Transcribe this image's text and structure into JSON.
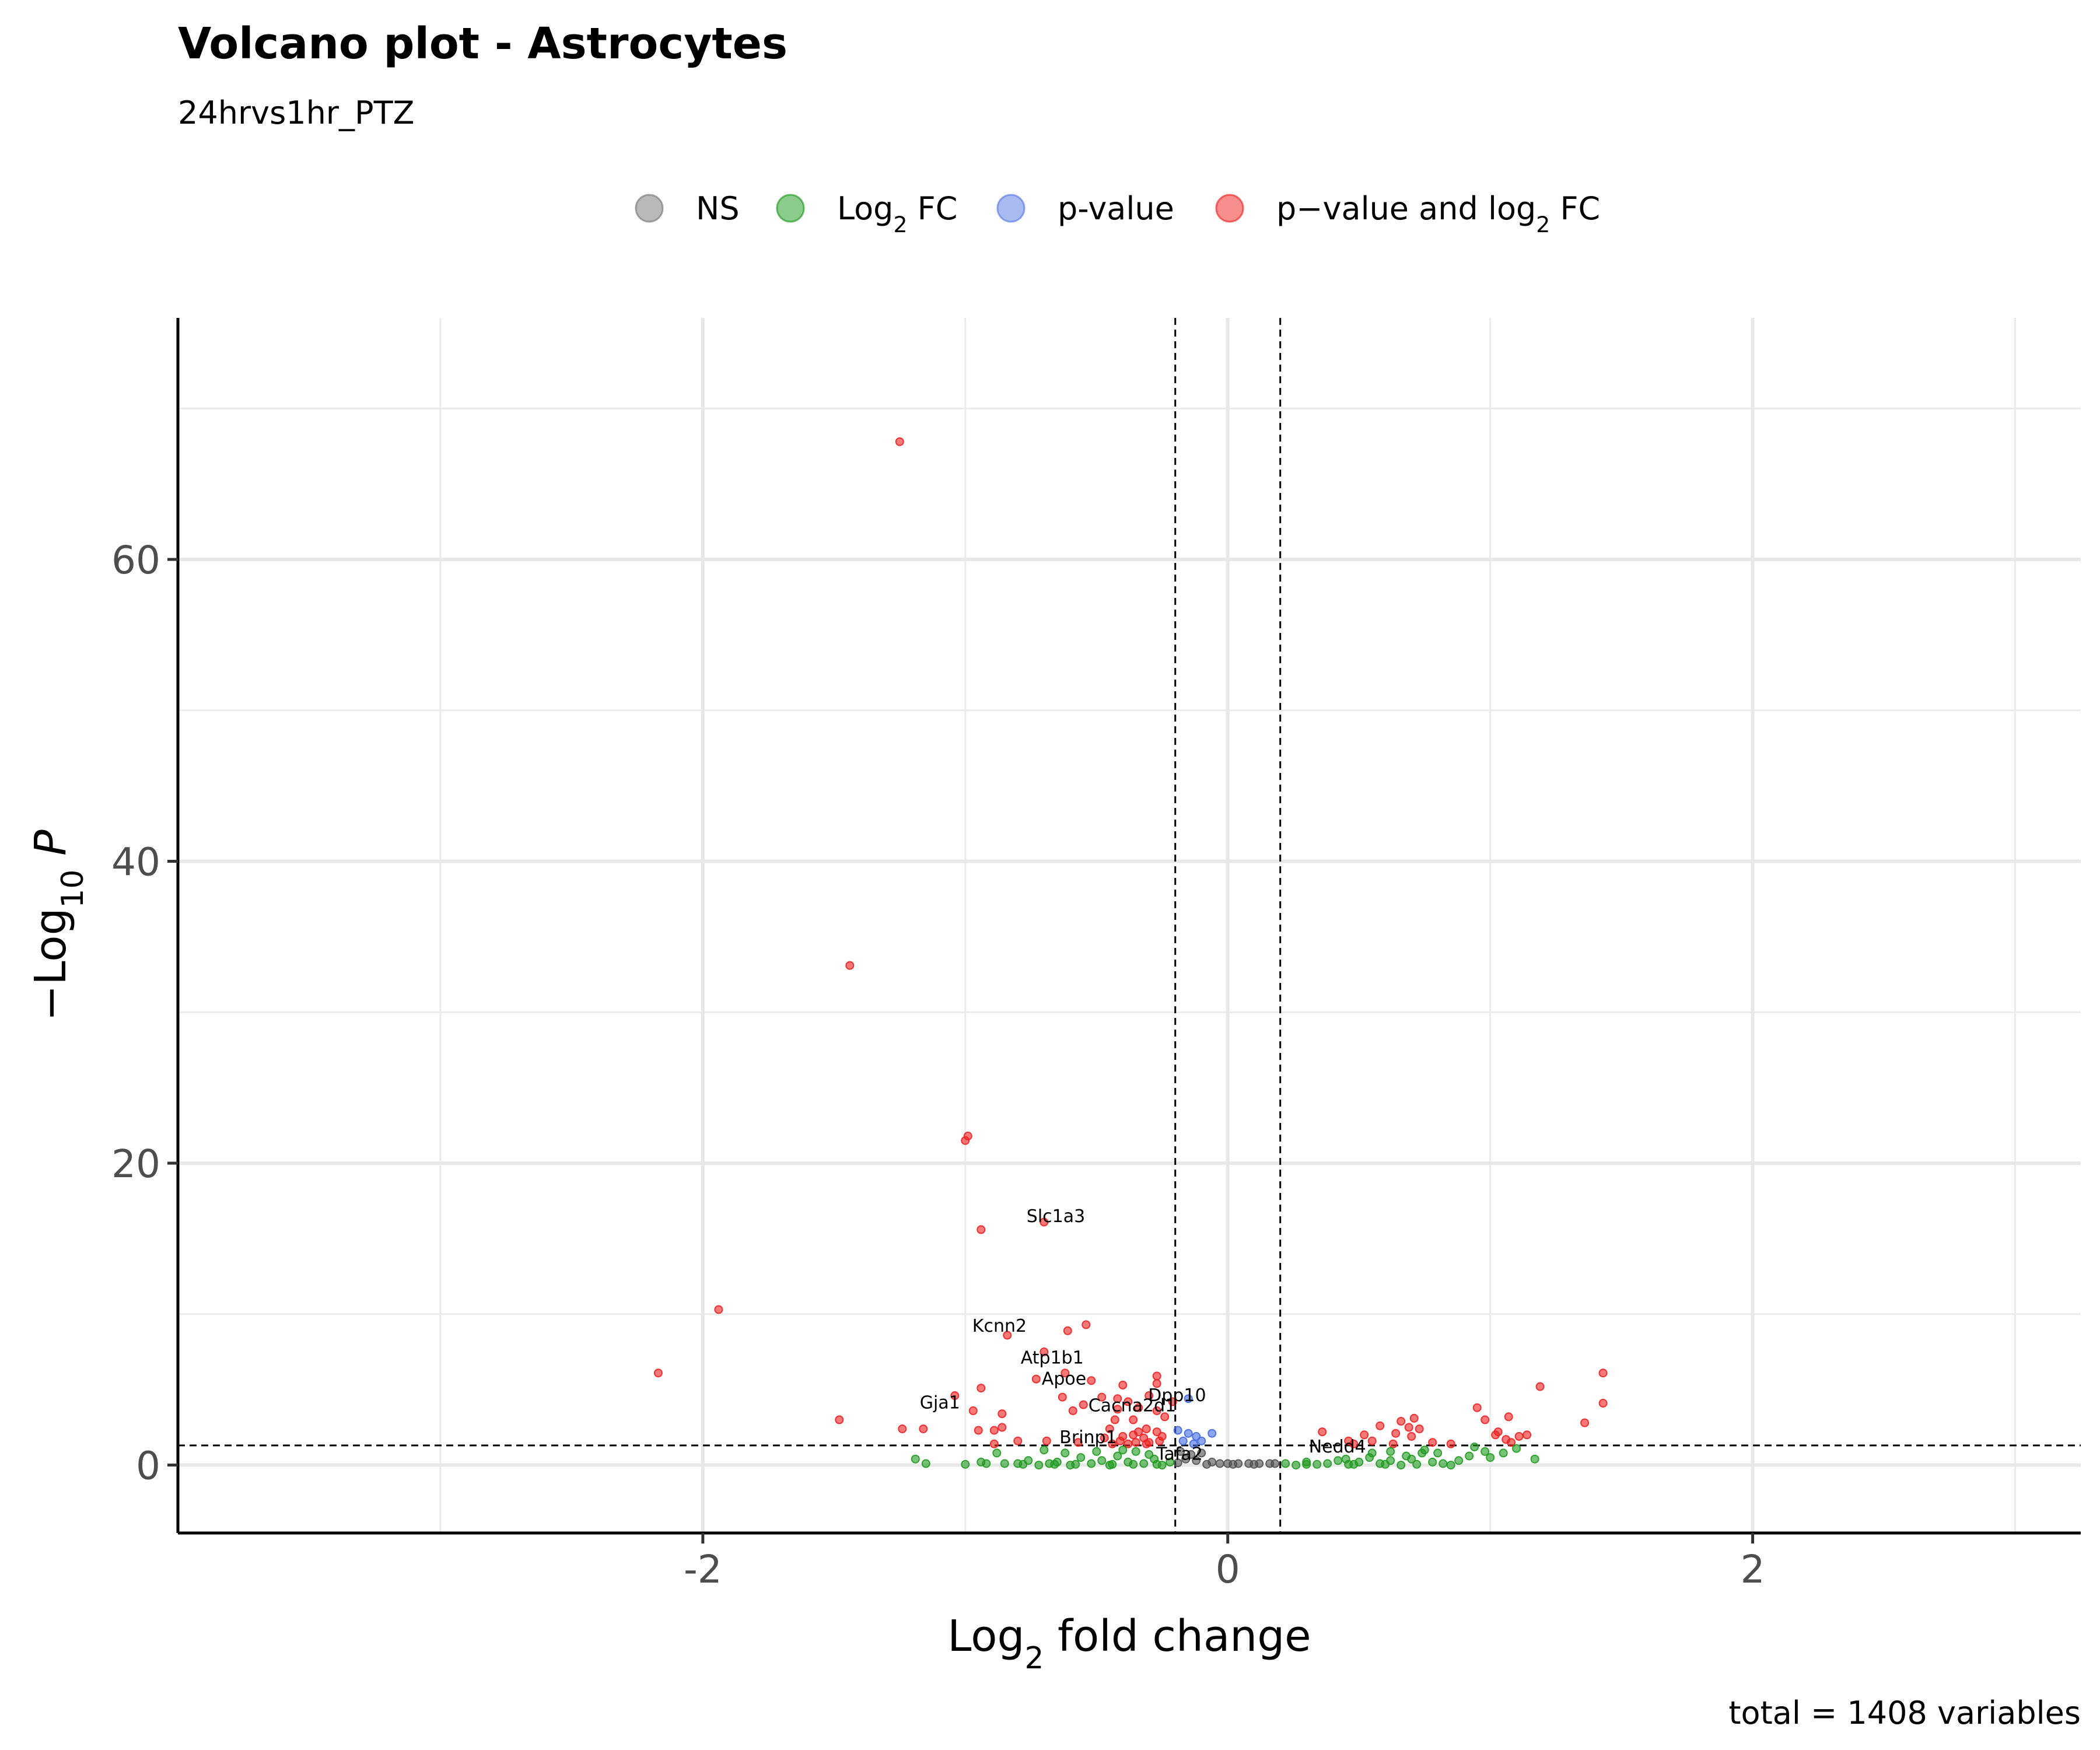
{
  "chart_data": {
    "type": "scatter",
    "title": "Volcano plot - Astrocytes",
    "subtitle": "24hrvs1hr_PTZ",
    "xlabel": {
      "pre": "Log",
      "sub": "2",
      "post": " fold change"
    },
    "ylabel": {
      "pre": "−Log",
      "sub": "10",
      "post": " P"
    },
    "xlim": [
      -4,
      3.25
    ],
    "ylim": [
      -4.5,
      76
    ],
    "x_ticks": [
      -2,
      0,
      2
    ],
    "x_tick_labels": [
      "-2",
      "0",
      "2"
    ],
    "y_ticks": [
      0,
      20,
      40,
      60
    ],
    "y_tick_labels": [
      "0",
      "20",
      "40",
      "60"
    ],
    "x_minor_grid": [
      -3,
      -1,
      1,
      3
    ],
    "y_minor_grid": [
      10,
      30,
      50,
      70
    ],
    "grid": true,
    "thresholds": {
      "log2fc": [
        -0.2,
        0.2
      ],
      "neg_log10_p": 1.3
    },
    "caption": "total = 1408 variables",
    "legend": {
      "position": "top",
      "entries": [
        {
          "key": "NS",
          "text": "NS",
          "color": "#808080"
        },
        {
          "key": "FC",
          "text": "Log",
          "sub": "2",
          "post": " FC",
          "color": "#2ca02c"
        },
        {
          "key": "P",
          "text": "p-value",
          "color": "#6382e6"
        },
        {
          "key": "PFC",
          "text": "p−value and log",
          "sub": "2",
          "post": " FC",
          "color": "#f0302d"
        }
      ]
    },
    "colors": {
      "NS": "#505050",
      "FC": "#1f9a1f",
      "P": "#4169e1",
      "PFC": "#ee2020"
    },
    "series": [
      {
        "category": "p-value and log2 FC",
        "points": [
          [
            -1.25,
            67.8
          ],
          [
            -1.44,
            33.1
          ],
          [
            -0.99,
            21.8
          ],
          [
            -1.0,
            21.5
          ],
          [
            -0.94,
            15.6
          ],
          [
            -0.7,
            16.1
          ],
          [
            -1.94,
            10.3
          ],
          [
            -2.17,
            6.1
          ],
          [
            -1.48,
            3.0
          ],
          [
            -0.54,
            9.3
          ],
          [
            -0.61,
            8.9
          ],
          [
            -0.84,
            8.6
          ],
          [
            -0.7,
            7.5
          ],
          [
            -0.62,
            6.1
          ],
          [
            -0.73,
            5.7
          ],
          [
            -0.52,
            5.6
          ],
          [
            -0.27,
            5.9
          ],
          [
            -0.27,
            5.4
          ],
          [
            -0.4,
            5.3
          ],
          [
            -0.94,
            5.1
          ],
          [
            -1.04,
            4.6
          ],
          [
            -0.63,
            4.5
          ],
          [
            -0.48,
            4.5
          ],
          [
            -0.42,
            4.4
          ],
          [
            -0.3,
            4.6
          ],
          [
            -0.21,
            4.2
          ],
          [
            -0.55,
            4.0
          ],
          [
            -0.38,
            4.2
          ],
          [
            -0.34,
            3.8
          ],
          [
            -0.59,
            3.6
          ],
          [
            -0.42,
            3.7
          ],
          [
            -0.27,
            3.6
          ],
          [
            -0.97,
            3.6
          ],
          [
            -0.86,
            3.4
          ],
          [
            -0.24,
            3.2
          ],
          [
            -0.36,
            3.0
          ],
          [
            -0.43,
            3.0
          ],
          [
            -0.86,
            2.5
          ],
          [
            -0.89,
            2.3
          ],
          [
            -0.95,
            2.3
          ],
          [
            -1.24,
            2.4
          ],
          [
            -1.16,
            2.4
          ],
          [
            -0.45,
            2.4
          ],
          [
            -0.34,
            2.2
          ],
          [
            -0.31,
            2.4
          ],
          [
            -0.27,
            2.2
          ],
          [
            -0.47,
            1.8
          ],
          [
            -0.4,
            1.9
          ],
          [
            -0.36,
            2.0
          ],
          [
            -0.32,
            1.8
          ],
          [
            -0.25,
            1.9
          ],
          [
            -0.8,
            1.6
          ],
          [
            -0.69,
            1.6
          ],
          [
            -0.57,
            1.5
          ],
          [
            -0.41,
            1.6
          ],
          [
            -0.35,
            1.5
          ],
          [
            -0.3,
            1.5
          ],
          [
            -0.26,
            1.6
          ],
          [
            -0.44,
            1.4
          ],
          [
            -0.38,
            1.4
          ],
          [
            -0.89,
            1.4
          ],
          [
            -0.31,
            1.4
          ],
          [
            0.36,
            2.2
          ],
          [
            0.46,
            1.6
          ],
          [
            0.52,
            2.0
          ],
          [
            0.58,
            2.6
          ],
          [
            0.64,
            2.1
          ],
          [
            0.66,
            2.9
          ],
          [
            0.69,
            2.5
          ],
          [
            0.71,
            3.1
          ],
          [
            0.73,
            2.4
          ],
          [
            0.7,
            1.9
          ],
          [
            0.63,
            1.4
          ],
          [
            0.55,
            1.6
          ],
          [
            0.48,
            1.4
          ],
          [
            0.95,
            3.8
          ],
          [
            0.98,
            3.0
          ],
          [
            1.03,
            2.2
          ],
          [
            1.07,
            3.2
          ],
          [
            1.02,
            2.0
          ],
          [
            1.06,
            1.7
          ],
          [
            1.11,
            1.9
          ],
          [
            1.14,
            2.0
          ],
          [
            1.19,
            5.2
          ],
          [
            1.36,
            2.8
          ],
          [
            1.43,
            6.1
          ],
          [
            1.43,
            4.1
          ],
          [
            0.78,
            1.5
          ],
          [
            0.85,
            1.4
          ],
          [
            1.08,
            1.5
          ]
        ]
      },
      {
        "category": "p-value",
        "points": [
          [
            -0.15,
            4.4
          ],
          [
            -0.19,
            2.3
          ],
          [
            -0.15,
            2.1
          ],
          [
            -0.12,
            1.9
          ],
          [
            -0.06,
            2.1
          ],
          [
            -0.1,
            1.6
          ],
          [
            -0.13,
            1.4
          ],
          [
            -0.17,
            1.6
          ]
        ]
      },
      {
        "category": "NS",
        "points": [
          [
            -0.18,
            0.9
          ],
          [
            -0.14,
            0.7
          ],
          [
            -0.1,
            0.8
          ],
          [
            -0.16,
            0.4
          ],
          [
            -0.12,
            0.3
          ],
          [
            -0.06,
            0.2
          ],
          [
            -0.03,
            0.1
          ],
          [
            0.0,
            0.1
          ],
          [
            0.04,
            0.1
          ],
          [
            0.08,
            0.1
          ],
          [
            0.12,
            0.1
          ],
          [
            0.16,
            0.1
          ],
          [
            -0.19,
            0.15
          ],
          [
            -0.08,
            0.05
          ],
          [
            0.02,
            0.05
          ],
          [
            0.1,
            0.05
          ],
          [
            0.18,
            0.1
          ]
        ]
      },
      {
        "category": "Log2 FC",
        "points": [
          [
            -1.19,
            0.4
          ],
          [
            -1.15,
            0.1
          ],
          [
            -1.0,
            0.05
          ],
          [
            -0.94,
            0.2
          ],
          [
            -0.92,
            0.1
          ],
          [
            -0.85,
            0.1
          ],
          [
            -0.8,
            0.1
          ],
          [
            -0.76,
            0.3
          ],
          [
            -0.72,
            0.0
          ],
          [
            -0.68,
            0.1
          ],
          [
            -0.65,
            0.2
          ],
          [
            -0.6,
            0.0
          ],
          [
            -0.56,
            0.5
          ],
          [
            -0.52,
            0.1
          ],
          [
            -0.48,
            0.3
          ],
          [
            -0.45,
            0.0
          ],
          [
            -0.42,
            0.6
          ],
          [
            -0.38,
            0.2
          ],
          [
            -0.35,
            0.9
          ],
          [
            -0.32,
            0.1
          ],
          [
            -0.28,
            0.4
          ],
          [
            -0.25,
            0.0
          ],
          [
            -0.22,
            0.2
          ],
          [
            -0.88,
            0.8
          ],
          [
            -0.7,
            1.0
          ],
          [
            -0.62,
            0.8
          ],
          [
            -0.5,
            0.9
          ],
          [
            -0.4,
            1.0
          ],
          [
            -0.3,
            0.7
          ],
          [
            -0.58,
            0.05
          ],
          [
            -0.78,
            0.05
          ],
          [
            -0.66,
            0.05
          ],
          [
            -0.44,
            0.05
          ],
          [
            -0.36,
            0.05
          ],
          [
            -0.27,
            0.05
          ],
          [
            0.22,
            0.1
          ],
          [
            0.26,
            0.0
          ],
          [
            0.3,
            0.2
          ],
          [
            0.34,
            0.05
          ],
          [
            0.38,
            0.1
          ],
          [
            0.42,
            0.3
          ],
          [
            0.46,
            0.05
          ],
          [
            0.5,
            0.2
          ],
          [
            0.54,
            0.5
          ],
          [
            0.58,
            0.1
          ],
          [
            0.62,
            0.3
          ],
          [
            0.66,
            0.0
          ],
          [
            0.7,
            0.4
          ],
          [
            0.74,
            0.8
          ],
          [
            0.78,
            0.2
          ],
          [
            0.82,
            0.1
          ],
          [
            0.85,
            0.0
          ],
          [
            0.62,
            0.9
          ],
          [
            0.55,
            0.8
          ],
          [
            0.75,
            1.0
          ],
          [
            0.92,
            0.6
          ],
          [
            0.94,
            1.2
          ],
          [
            0.98,
            0.9
          ],
          [
            1.0,
            0.5
          ],
          [
            1.05,
            0.8
          ],
          [
            1.1,
            1.1
          ],
          [
            1.17,
            0.4
          ],
          [
            0.45,
            0.4
          ],
          [
            0.68,
            0.6
          ],
          [
            0.88,
            0.3
          ],
          [
            0.8,
            0.8
          ],
          [
            0.3,
            0.05
          ],
          [
            0.48,
            0.05
          ],
          [
            0.72,
            0.05
          ],
          [
            0.6,
            0.05
          ]
        ]
      }
    ],
    "labels": [
      {
        "gene": "Slc1a3",
        "x": -0.7,
        "y": 16.1
      },
      {
        "gene": "Kcnn2",
        "x": -0.84,
        "y": 8.6
      },
      {
        "gene": "Atp1b1",
        "x": -0.7,
        "y": 7.5
      },
      {
        "gene": "Apoe",
        "x": -0.62,
        "y": 6.1
      },
      {
        "gene": "Gja1",
        "x": -1.04,
        "y": 4.6
      },
      {
        "gene": "Dpp10",
        "x": -0.27,
        "y": 5.4
      },
      {
        "gene": "Cacna2d1",
        "x": -0.42,
        "y": 4.4
      },
      {
        "gene": "Brinp1",
        "x": -0.43,
        "y": 3.0
      },
      {
        "gene": "Tafa2",
        "x": -0.25,
        "y": 1.9
      },
      {
        "gene": "Nedd4",
        "x": 0.52,
        "y": 2.0
      }
    ]
  }
}
